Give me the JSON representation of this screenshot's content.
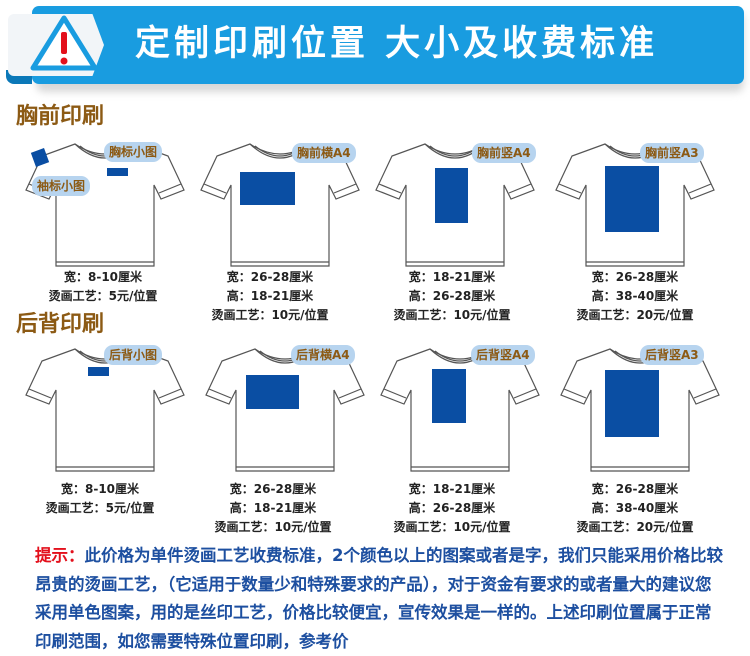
{
  "header": {
    "title": "定制印刷位置 大小及收费标准",
    "icon": "warning-triangle-icon",
    "accent": "#199ce0"
  },
  "sections": [
    {
      "title": "胸前印刷",
      "items": [
        {
          "labels": [
            "胸标小图",
            "袖标小图"
          ],
          "specs": [
            "宽：8-10厘米",
            "烫画工艺：5元/位置"
          ]
        },
        {
          "labels": [
            "胸前横A4"
          ],
          "specs": [
            "宽：26-28厘米",
            "高：18-21厘米",
            "烫画工艺：10元/位置"
          ]
        },
        {
          "labels": [
            "胸前竖A4"
          ],
          "specs": [
            "宽：18-21厘米",
            "高：26-28厘米",
            "烫画工艺：10元/位置"
          ]
        },
        {
          "labels": [
            "胸前竖A3"
          ],
          "specs": [
            "宽：26-28厘米",
            "高：38-40厘米",
            "烫画工艺：20元/位置"
          ]
        }
      ]
    },
    {
      "title": "后背印刷",
      "items": [
        {
          "labels": [
            "后背小图"
          ],
          "specs": [
            "宽：8-10厘米",
            "烫画工艺：5元/位置"
          ]
        },
        {
          "labels": [
            "后背横A4"
          ],
          "specs": [
            "宽：26-28厘米",
            "高：18-21厘米",
            "烫画工艺：10元/位置"
          ]
        },
        {
          "labels": [
            "后背竖A4"
          ],
          "specs": [
            "宽：18-21厘米",
            "高：26-28厘米",
            "烫画工艺：10元/位置"
          ]
        },
        {
          "labels": [
            "后背竖A3"
          ],
          "specs": [
            "宽：26-28厘米",
            "高：38-40厘米",
            "烫画工艺：20元/位置"
          ]
        }
      ]
    }
  ],
  "note": {
    "hint": "提示：",
    "text": "此价格为单件烫画工艺收费标准，2个颜色以上的图案或者是字，我们只能采用价格比较昂贵的烫画工艺，（它适用于数量少和特殊要求的产品），对于资金有要求的或者量大的建议您采用单色图案，用的是丝印工艺，价格比较便宜，宣传效果是一样的。上述印刷位置属于正常印刷范围，如您需要特殊位置印刷，参考价"
  },
  "colors": {
    "print": "#0a4ea3",
    "section_title": "#8c5a14",
    "note_text": "#1d4fa0",
    "hint": "#e3101c"
  }
}
